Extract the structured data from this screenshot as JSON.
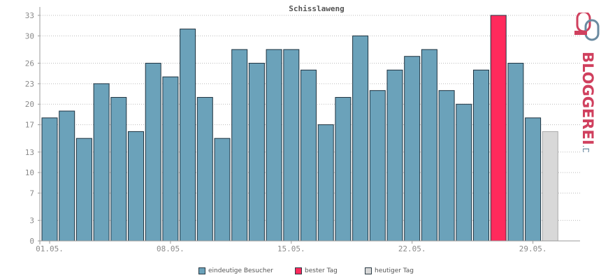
{
  "chart_data": {
    "type": "bar",
    "title": "Schisslaweng",
    "xlabel": "",
    "ylabel": "",
    "ylim": [
      0,
      33
    ],
    "grid": true,
    "yticks": [
      0,
      3,
      7,
      10,
      13,
      17,
      20,
      23,
      26,
      30,
      33
    ],
    "ytick_labels": [
      "0",
      "3",
      "7",
      "10",
      "13",
      "17",
      "20",
      "23",
      "26",
      "30",
      "33"
    ],
    "xtick_labels": [
      {
        "label": "01.05.",
        "index": 0
      },
      {
        "label": "08.05.",
        "index": 7
      },
      {
        "label": "15.05.",
        "index": 14
      },
      {
        "label": "22.05.",
        "index": 21
      },
      {
        "label": "29.05.",
        "index": 28
      }
    ],
    "values": [
      18,
      19,
      15,
      23,
      21,
      16,
      26,
      24,
      31,
      21,
      15,
      28,
      26,
      28,
      28,
      25,
      17,
      21,
      30,
      22,
      25,
      27,
      28,
      22,
      20,
      25,
      33,
      26,
      18,
      16
    ],
    "bar_kinds": [
      "normal",
      "normal",
      "normal",
      "normal",
      "normal",
      "normal",
      "normal",
      "normal",
      "normal",
      "normal",
      "normal",
      "normal",
      "normal",
      "normal",
      "normal",
      "normal",
      "normal",
      "normal",
      "normal",
      "normal",
      "normal",
      "normal",
      "normal",
      "normal",
      "normal",
      "normal",
      "best",
      "normal",
      "normal",
      "today"
    ],
    "colors": {
      "normal": "#6ba2ba",
      "best": "#ff2a5c",
      "today": "#d8d8d8",
      "bar_stroke": "#1f3340",
      "grid": "#bbbbbb",
      "axis": "#999999"
    },
    "legend": [
      {
        "label": "eindeutige Besucher",
        "color": "#6ba2ba"
      },
      {
        "label": "bester Tag",
        "color": "#ff2a5c"
      },
      {
        "label": "heutiger Tag",
        "color": "#d8d8d8"
      }
    ]
  },
  "logo": {
    "text": "BLOGGEREI",
    "suffix": ".DE",
    "text_color": "#d0405e",
    "suffix_color": "#6a8aa0",
    "icon_name": "bloggerei-logo-icon"
  }
}
